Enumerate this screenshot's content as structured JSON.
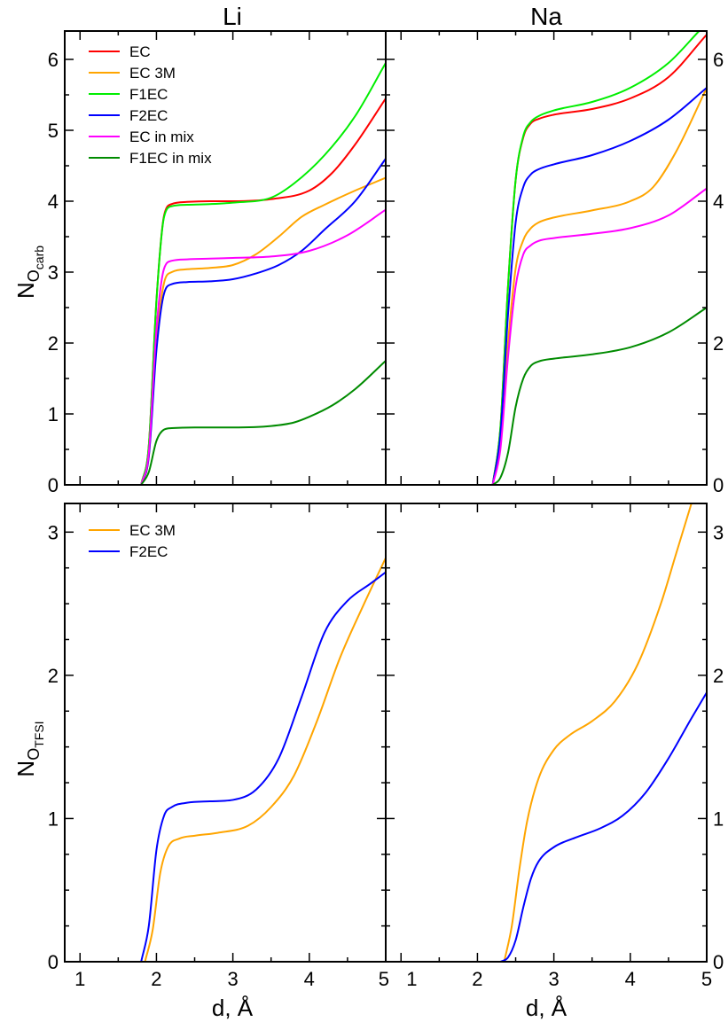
{
  "columns": [
    {
      "title": "Li"
    },
    {
      "title": "Na"
    }
  ],
  "axes": {
    "x": {
      "label": "d, Å",
      "lim": [
        0.8,
        5.0
      ],
      "ticks": [
        1,
        2,
        3,
        4,
        5
      ],
      "tick_labels": [
        "1",
        "2",
        "3",
        "4",
        "5"
      ]
    },
    "y_top": {
      "label_main": "N",
      "label_sub1": "O",
      "label_sub2": "carb",
      "lim": [
        0,
        6.4
      ],
      "ticks": [
        0,
        1,
        2,
        3,
        4,
        5,
        6
      ],
      "tick_labels_left": [
        "0",
        "1",
        "2",
        "3",
        "4",
        "5",
        "6"
      ],
      "tick_labels_right": [
        "0",
        "2",
        "4",
        "6"
      ]
    },
    "y_bottom": {
      "label_main": "N",
      "label_sub1": "O",
      "label_sub2": "TFSI",
      "lim": [
        0,
        3.2
      ],
      "ticks": [
        0,
        1,
        2,
        3
      ],
      "tick_labels_left": [
        "0",
        "1",
        "2",
        "3"
      ],
      "tick_labels_right": [
        "0",
        "1",
        "2",
        "3"
      ]
    }
  },
  "legends": {
    "top": [
      "EC",
      "EC 3M",
      "F1EC",
      "F2EC",
      "EC in mix",
      "F1EC in mix"
    ],
    "bottom": [
      "EC 3M",
      "F2EC"
    ]
  },
  "colors": {
    "EC": "#ff0000",
    "EC 3M": "#ffa500",
    "F1EC": "#00ee00",
    "F2EC": "#0000ff",
    "EC in mix": "#ff00ff",
    "F1EC in mix": "#008b00"
  },
  "chart_data": [
    {
      "type": "line",
      "panel": "top-left",
      "title": "Li",
      "xlim": [
        0.8,
        5.0
      ],
      "ylim": [
        0,
        6.4
      ],
      "series": [
        {
          "name": "EC",
          "color": "#ff0000",
          "x": [
            1.8,
            1.9,
            2.0,
            2.1,
            2.2,
            2.4,
            2.7,
            3.0,
            3.5,
            4.0,
            4.3,
            4.6,
            5.0
          ],
          "y": [
            0,
            0.55,
            2.6,
            3.8,
            3.96,
            3.99,
            4.0,
            4.0,
            4.03,
            4.15,
            4.4,
            4.8,
            5.45
          ]
        },
        {
          "name": "EC 3M",
          "color": "#ffa500",
          "x": [
            1.8,
            1.9,
            2.0,
            2.1,
            2.2,
            2.4,
            2.7,
            3.0,
            3.3,
            3.6,
            3.9,
            4.2,
            4.6,
            5.0
          ],
          "y": [
            0,
            0.4,
            2.0,
            2.85,
            3.0,
            3.04,
            3.06,
            3.1,
            3.25,
            3.5,
            3.78,
            3.95,
            4.15,
            4.33
          ]
        },
        {
          "name": "F1EC",
          "color": "#00ee00",
          "x": [
            1.8,
            1.9,
            2.0,
            2.1,
            2.2,
            2.4,
            2.7,
            3.0,
            3.5,
            3.8,
            4.2,
            4.6,
            5.0
          ],
          "y": [
            0,
            0.55,
            2.6,
            3.78,
            3.93,
            3.95,
            3.96,
            3.98,
            4.05,
            4.25,
            4.65,
            5.2,
            5.95
          ]
        },
        {
          "name": "F2EC",
          "color": "#0000ff",
          "x": [
            1.8,
            1.9,
            2.0,
            2.1,
            2.2,
            2.4,
            2.7,
            3.0,
            3.3,
            3.6,
            3.9,
            4.2,
            4.6,
            5.0
          ],
          "y": [
            0,
            0.4,
            1.9,
            2.7,
            2.83,
            2.86,
            2.87,
            2.9,
            2.98,
            3.1,
            3.3,
            3.6,
            4.0,
            4.6
          ]
        },
        {
          "name": "EC in mix",
          "color": "#ff00ff",
          "x": [
            1.8,
            1.9,
            2.0,
            2.1,
            2.2,
            2.4,
            2.7,
            3.0,
            3.5,
            4.0,
            4.5,
            5.0
          ],
          "y": [
            0,
            0.45,
            2.2,
            3.05,
            3.16,
            3.18,
            3.19,
            3.2,
            3.22,
            3.3,
            3.52,
            3.88
          ]
        },
        {
          "name": "F1EC in mix",
          "color": "#008b00",
          "x": [
            1.8,
            1.9,
            2.0,
            2.1,
            2.2,
            2.5,
            3.0,
            3.5,
            3.8,
            4.0,
            4.3,
            4.6,
            5.0
          ],
          "y": [
            0,
            0.18,
            0.62,
            0.78,
            0.8,
            0.81,
            0.81,
            0.83,
            0.88,
            0.96,
            1.12,
            1.35,
            1.75
          ]
        }
      ]
    },
    {
      "type": "line",
      "panel": "top-right",
      "title": "Na",
      "xlim": [
        0.8,
        5.0
      ],
      "ylim": [
        0,
        6.4
      ],
      "series": [
        {
          "name": "EC",
          "color": "#ff0000",
          "x": [
            2.2,
            2.3,
            2.4,
            2.5,
            2.6,
            2.7,
            2.8,
            3.0,
            3.5,
            4.0,
            4.5,
            5.0
          ],
          "y": [
            0,
            0.8,
            2.8,
            4.3,
            4.9,
            5.1,
            5.16,
            5.22,
            5.3,
            5.45,
            5.75,
            6.35
          ]
        },
        {
          "name": "EC 3M",
          "color": "#ffa500",
          "x": [
            2.2,
            2.3,
            2.4,
            2.5,
            2.6,
            2.7,
            2.8,
            3.0,
            3.5,
            4.0,
            4.3,
            4.6,
            5.0
          ],
          "y": [
            0,
            0.6,
            2.0,
            3.05,
            3.45,
            3.62,
            3.7,
            3.77,
            3.87,
            4.0,
            4.2,
            4.7,
            5.6
          ]
        },
        {
          "name": "F1EC",
          "color": "#00ee00",
          "x": [
            2.2,
            2.3,
            2.4,
            2.5,
            2.6,
            2.7,
            2.8,
            3.0,
            3.5,
            4.0,
            4.5,
            4.9
          ],
          "y": [
            0,
            0.8,
            2.8,
            4.3,
            4.92,
            5.12,
            5.2,
            5.28,
            5.4,
            5.6,
            5.95,
            6.4
          ]
        },
        {
          "name": "F2EC",
          "color": "#0000ff",
          "x": [
            2.2,
            2.3,
            2.4,
            2.5,
            2.6,
            2.7,
            2.8,
            3.0,
            3.5,
            4.0,
            4.5,
            5.0
          ],
          "y": [
            0,
            0.7,
            2.4,
            3.7,
            4.2,
            4.38,
            4.45,
            4.52,
            4.65,
            4.85,
            5.15,
            5.6
          ]
        },
        {
          "name": "EC in mix",
          "color": "#ff00ff",
          "x": [
            2.2,
            2.3,
            2.4,
            2.5,
            2.6,
            2.7,
            2.8,
            3.0,
            3.5,
            4.0,
            4.5,
            5.0
          ],
          "y": [
            0,
            0.5,
            1.8,
            2.8,
            3.25,
            3.38,
            3.44,
            3.48,
            3.54,
            3.62,
            3.8,
            4.18
          ]
        },
        {
          "name": "F1EC in mix",
          "color": "#008b00",
          "x": [
            2.2,
            2.3,
            2.4,
            2.5,
            2.6,
            2.7,
            2.8,
            3.0,
            3.5,
            4.0,
            4.5,
            5.0
          ],
          "y": [
            0,
            0.1,
            0.45,
            1.1,
            1.5,
            1.68,
            1.74,
            1.78,
            1.84,
            1.94,
            2.15,
            2.5
          ]
        }
      ]
    },
    {
      "type": "line",
      "panel": "bottom-left",
      "title": "Li",
      "xlabel": "d, Å",
      "xlim": [
        0.8,
        5.0
      ],
      "ylim": [
        0,
        3.2
      ],
      "series": [
        {
          "name": "EC 3M",
          "color": "#ffa500",
          "x": [
            1.85,
            1.95,
            2.05,
            2.15,
            2.3,
            2.5,
            2.8,
            3.2,
            3.5,
            3.8,
            4.1,
            4.4,
            4.7,
            5.0
          ],
          "y": [
            0,
            0.22,
            0.62,
            0.8,
            0.86,
            0.88,
            0.9,
            0.95,
            1.08,
            1.3,
            1.68,
            2.12,
            2.48,
            2.82
          ]
        },
        {
          "name": "F2EC",
          "color": "#0000ff",
          "x": [
            1.8,
            1.9,
            2.0,
            2.1,
            2.2,
            2.4,
            2.7,
            3.0,
            3.3,
            3.6,
            3.9,
            4.2,
            4.5,
            4.8,
            5.0
          ],
          "y": [
            0,
            0.25,
            0.78,
            1.02,
            1.08,
            1.11,
            1.12,
            1.13,
            1.2,
            1.42,
            1.85,
            2.3,
            2.52,
            2.64,
            2.72
          ]
        }
      ]
    },
    {
      "type": "line",
      "panel": "bottom-right",
      "title": "Na",
      "xlabel": "d, Å",
      "xlim": [
        0.8,
        5.0
      ],
      "ylim": [
        0,
        3.2
      ],
      "series": [
        {
          "name": "EC 3M",
          "color": "#ffa500",
          "x": [
            2.35,
            2.45,
            2.55,
            2.65,
            2.8,
            3.0,
            3.2,
            3.5,
            3.8,
            4.1,
            4.4,
            4.6,
            4.8
          ],
          "y": [
            0,
            0.25,
            0.65,
            0.98,
            1.28,
            1.48,
            1.58,
            1.68,
            1.82,
            2.08,
            2.5,
            2.85,
            3.2
          ]
        },
        {
          "name": "F2EC",
          "color": "#0000ff",
          "x": [
            2.3,
            2.4,
            2.5,
            2.6,
            2.7,
            2.8,
            3.0,
            3.3,
            3.6,
            3.9,
            4.2,
            4.5,
            4.8,
            5.0
          ],
          "y": [
            0,
            0.03,
            0.15,
            0.38,
            0.58,
            0.7,
            0.8,
            0.87,
            0.93,
            1.02,
            1.18,
            1.42,
            1.7,
            1.88
          ]
        }
      ]
    }
  ]
}
